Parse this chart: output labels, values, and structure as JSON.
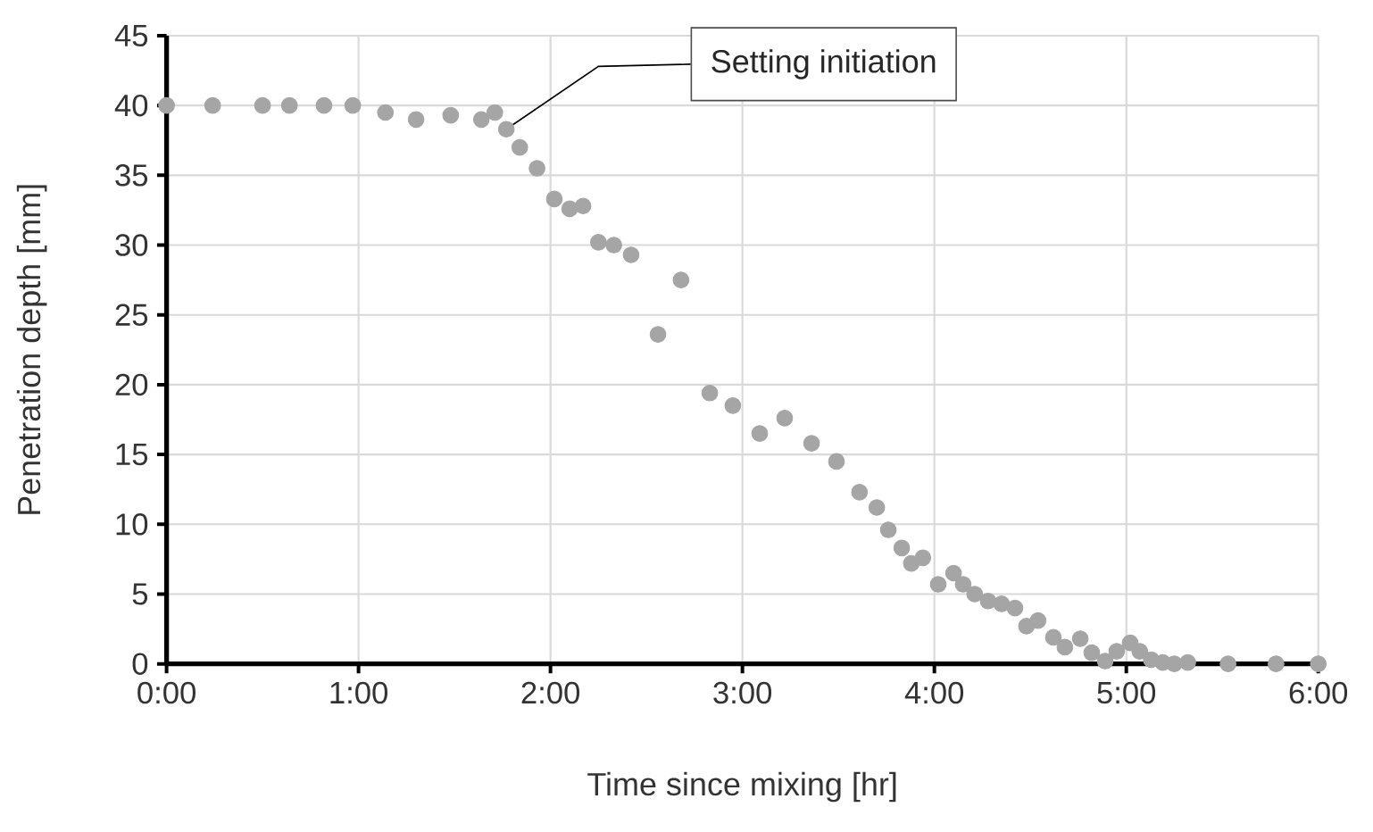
{
  "chart_data": {
    "type": "scatter",
    "xlabel": "Time since mixing [hr]",
    "ylabel": "Penetration depth [mm]",
    "x": [
      0,
      0.24,
      0.5,
      0.64,
      0.82,
      0.97,
      1.14,
      1.3,
      1.48,
      1.64,
      1.71,
      1.77,
      1.84,
      1.93,
      2.02,
      2.1,
      2.17,
      2.25,
      2.33,
      2.42,
      2.56,
      2.68,
      2.83,
      2.95,
      3.09,
      3.22,
      3.36,
      3.49,
      3.61,
      3.7,
      3.76,
      3.83,
      3.88,
      3.94,
      4.02,
      4.1,
      4.15,
      4.21,
      4.28,
      4.35,
      4.42,
      4.48,
      4.54,
      4.62,
      4.68,
      4.76,
      4.82,
      4.89,
      4.95,
      5.02,
      5.07,
      5.13,
      5.19,
      5.25,
      5.32,
      5.53,
      5.78,
      6
    ],
    "values": [
      40,
      40,
      40,
      40,
      40,
      40,
      39.5,
      39,
      39.3,
      39,
      39.5,
      38.3,
      37,
      35.5,
      33.3,
      32.6,
      32.8,
      30.2,
      30,
      29.3,
      23.6,
      27.5,
      19.4,
      18.5,
      16.5,
      17.6,
      15.8,
      14.5,
      12.3,
      11.2,
      9.6,
      8.3,
      7.2,
      7.6,
      5.7,
      6.5,
      5.7,
      5,
      4.5,
      4.3,
      4,
      2.7,
      3.1,
      1.9,
      1.2,
      1.8,
      0.8,
      0.2,
      0.9,
      1.5,
      0.9,
      0.3,
      0.1,
      0,
      0.1,
      0,
      0,
      0
    ],
    "color": "#a5a5a5",
    "marker": "circle",
    "xlim": [
      0,
      6
    ],
    "xticks": [
      {
        "value": 0,
        "label": "0:00"
      },
      {
        "value": 1,
        "label": "1:00"
      },
      {
        "value": 2,
        "label": "2:00"
      },
      {
        "value": 3,
        "label": "3:00"
      },
      {
        "value": 4,
        "label": "4:00"
      },
      {
        "value": 5,
        "label": "5:00"
      },
      {
        "value": 6,
        "label": "6:00"
      }
    ],
    "ylim": [
      0,
      45
    ],
    "yticks": [
      0,
      5,
      10,
      15,
      20,
      25,
      30,
      35,
      40,
      45
    ],
    "grid": true,
    "annotations": [
      {
        "text": "Setting initiation",
        "x": 1.77,
        "y": 38.3
      }
    ]
  }
}
